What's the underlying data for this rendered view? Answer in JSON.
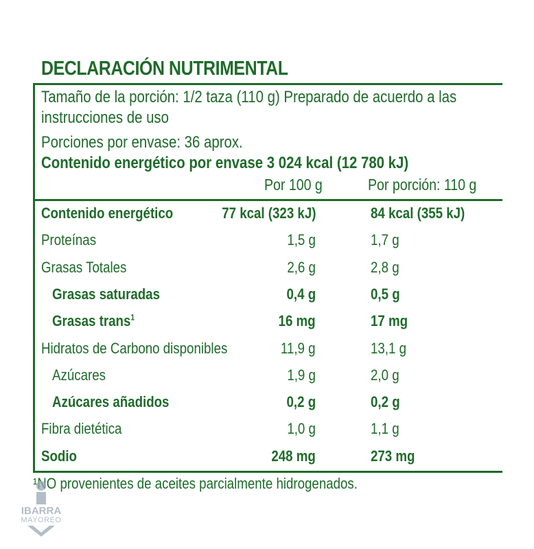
{
  "title": "DECLARACIÓN NUTRIMENTAL",
  "serving_size": "Tamaño de la porción: 1/2 taza (110 g) Preparado de acuerdo a las",
  "serving_size_cont": "instrucciones de uso",
  "servings_per_container": "Porciones por envase: 36 aprox.",
  "energy_per_container": "Contenido energético por envase 3 024 kcal (12 780 kJ)",
  "columns": {
    "per_100": "Por 100 g",
    "per_serving": "Por porción: 110 g"
  },
  "rows": [
    {
      "label": "Contenido energético",
      "per_100": "77 kcal (323 kJ)",
      "per_serving": "84 kcal (355 kJ)",
      "bold": true,
      "indent": false
    },
    {
      "label": "Proteínas",
      "per_100": "1,5 g",
      "per_serving": "1,7 g",
      "bold": false,
      "indent": false
    },
    {
      "label": "Grasas Totales",
      "per_100": "2,6 g",
      "per_serving": "2,8 g",
      "bold": false,
      "indent": false
    },
    {
      "label": "Grasas saturadas",
      "per_100": "0,4 g",
      "per_serving": "0,5 g",
      "bold": true,
      "indent": true
    },
    {
      "label": "Grasas trans",
      "sup": "1",
      "per_100": "16 mg",
      "per_serving": "17 mg",
      "bold": true,
      "indent": true
    },
    {
      "label": "Hidratos de Carbono disponibles",
      "per_100": "11,9 g",
      "per_serving": "13,1 g",
      "bold": false,
      "indent": false
    },
    {
      "label": "Azúcares",
      "per_100": "1,9 g",
      "per_serving": "2,0 g",
      "bold": false,
      "indent": true
    },
    {
      "label": "Azúcares añadidos",
      "per_100": "0,2 g",
      "per_serving": "0,2 g",
      "bold": true,
      "indent": true
    },
    {
      "label": "Fibra dietética",
      "per_100": "1,0 g",
      "per_serving": "1,1 g",
      "bold": false,
      "indent": false
    },
    {
      "label": "Sodio",
      "per_100": "248 mg",
      "per_serving": "273 mg",
      "bold": true,
      "indent": false
    }
  ],
  "footnote": "¹NO provenientes de aceites parcialmente hidrogenados.",
  "watermark": {
    "line1": "IBARRA",
    "line2": "MAYOREO"
  },
  "colors": {
    "text": "#1f6b2a",
    "watermark": "#9aa7b8"
  }
}
